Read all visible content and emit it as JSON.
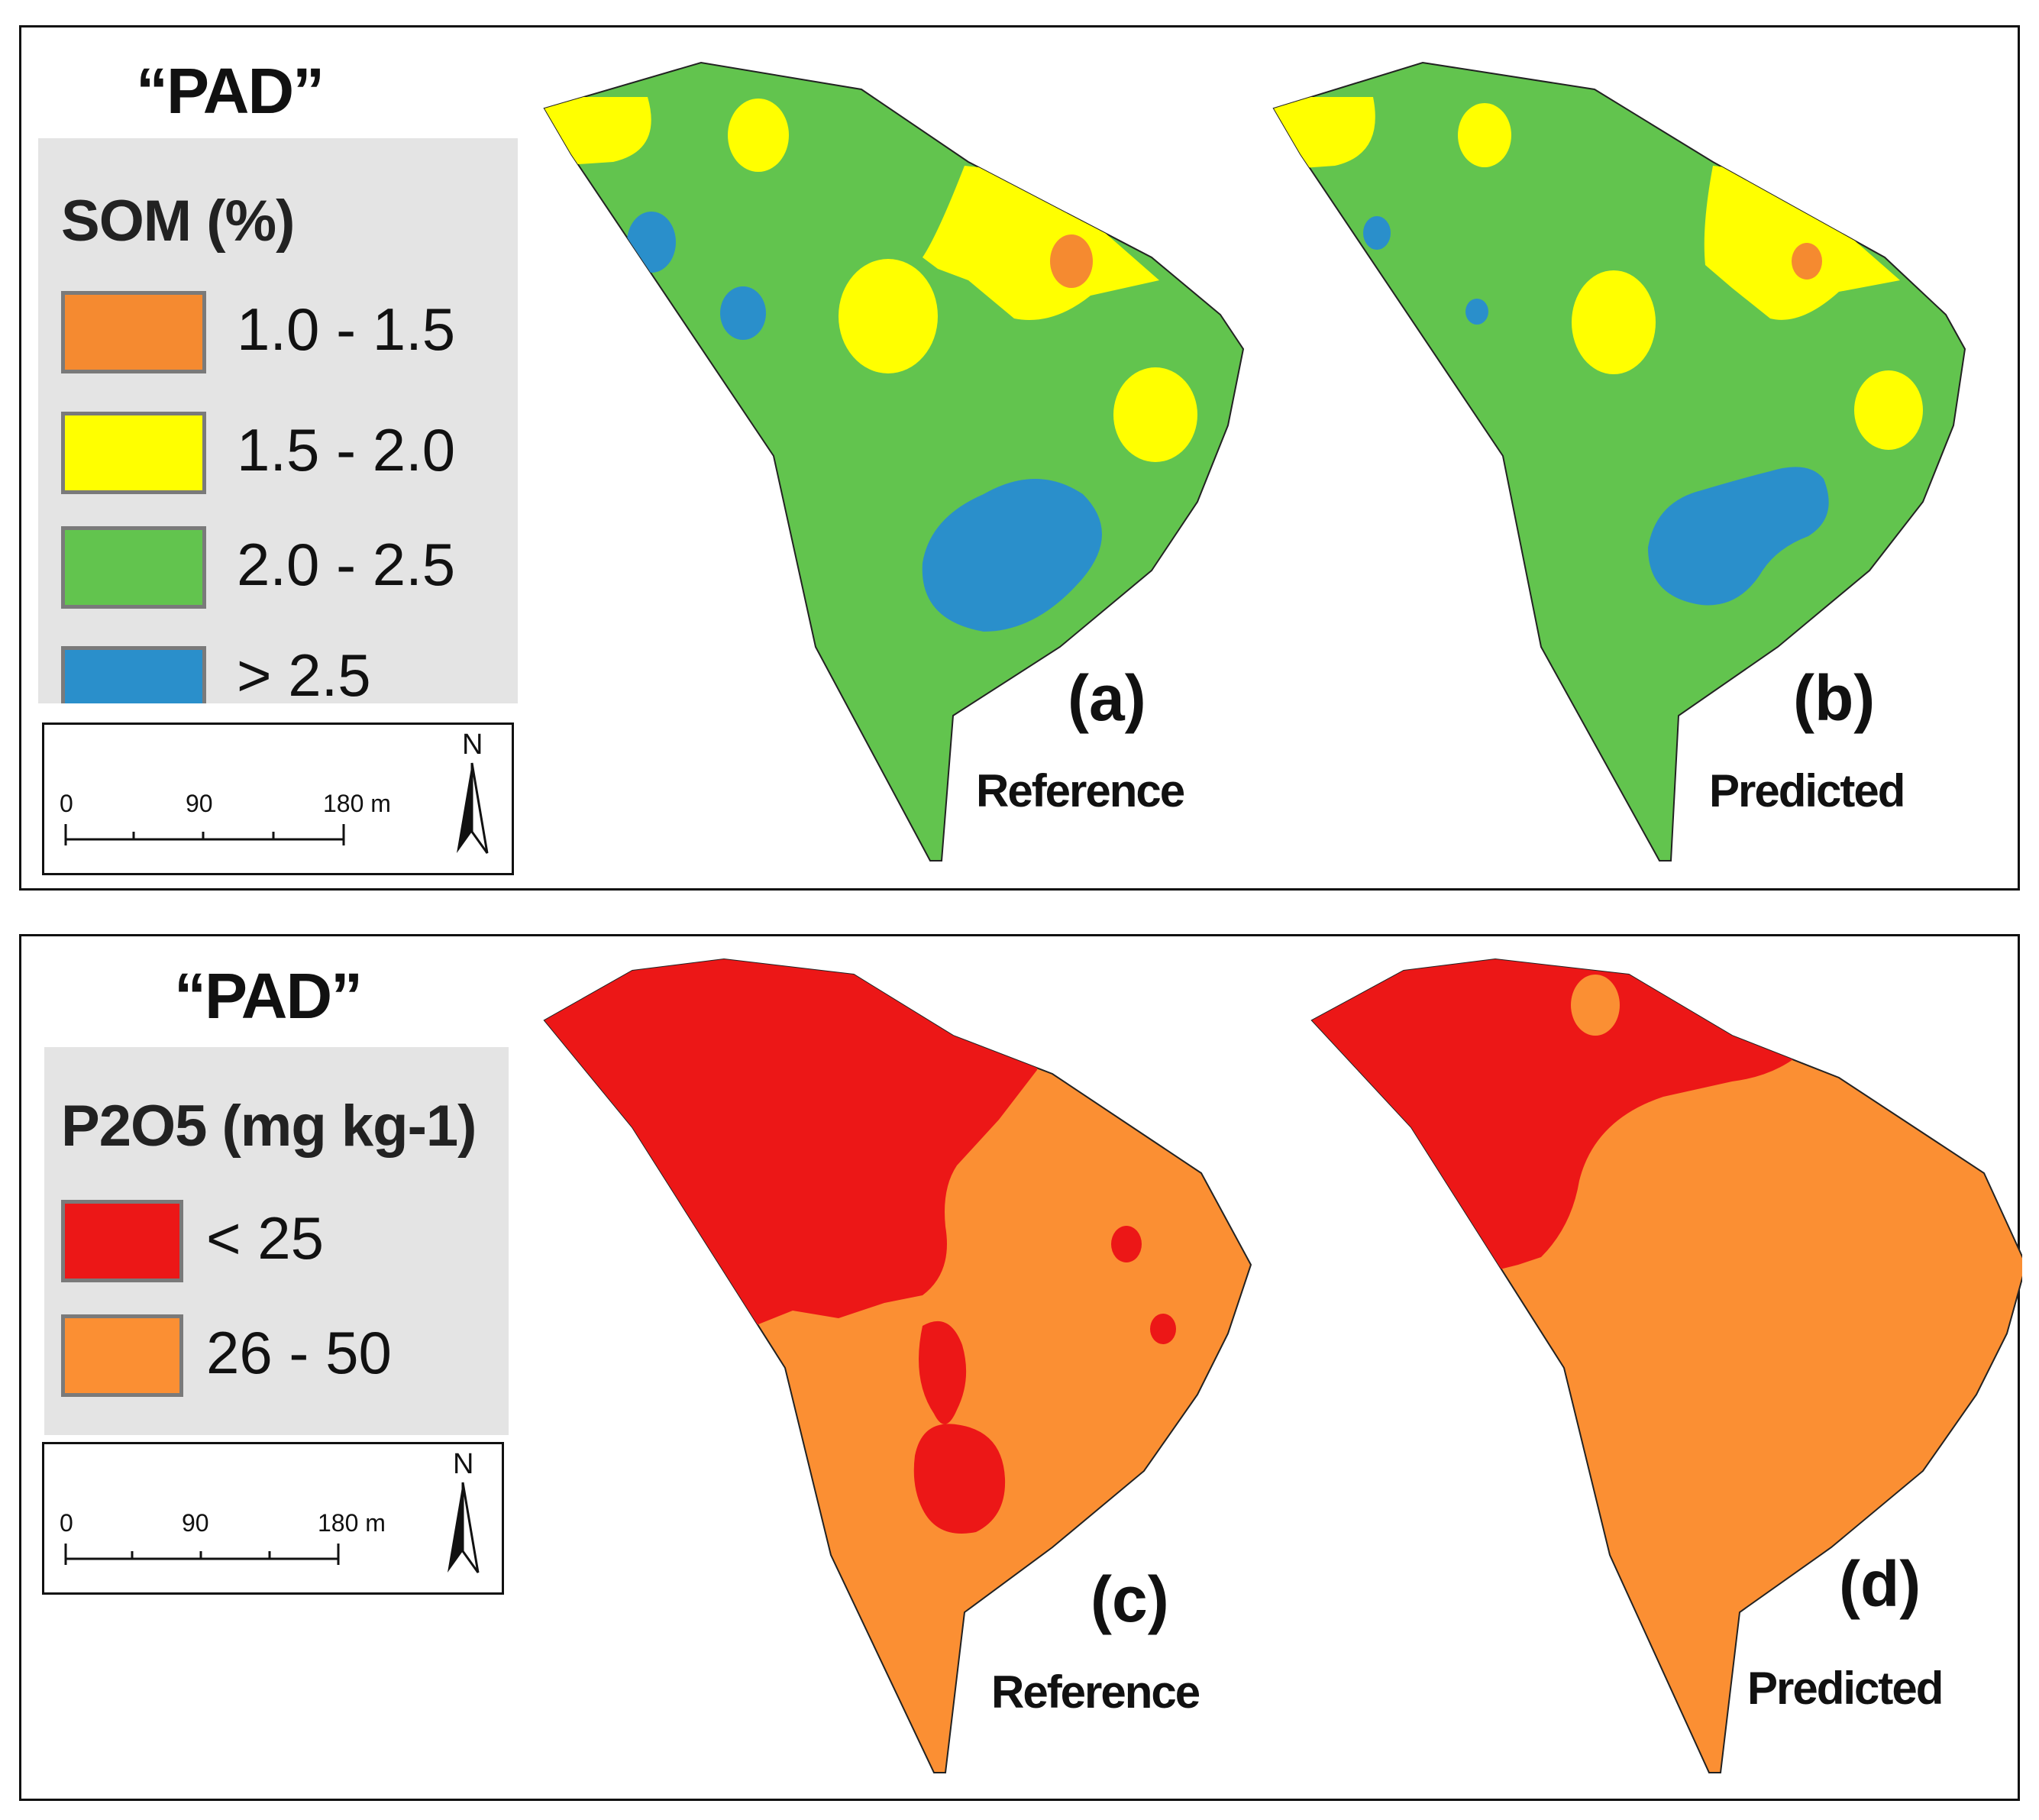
{
  "top_panel": {
    "site_label": "“PAD”",
    "legend": {
      "title": "SOM (%)",
      "classes": [
        {
          "label": "1.0 - 1.5",
          "color": "#f58a30"
        },
        {
          "label": "1.5 - 2.0",
          "color": "#ffff00"
        },
        {
          "label": "2.0 - 2.5",
          "color": "#62c44e"
        },
        {
          "label": "> 2.5",
          "color": "#2a8fcb"
        }
      ]
    },
    "scalebar": {
      "ticks": [
        "0",
        "90",
        "180 m"
      ],
      "north": "N"
    },
    "maps": [
      {
        "letter": "(a)",
        "caption": "Reference"
      },
      {
        "letter": "(b)",
        "caption": "Predicted"
      }
    ]
  },
  "bottom_panel": {
    "site_label": "“PAD”",
    "legend": {
      "title": "P2O5 (mg kg-1)",
      "classes": [
        {
          "label": "< 25",
          "color": "#ec1717"
        },
        {
          "label": "26 - 50",
          "color": "#fb8f33"
        }
      ]
    },
    "scalebar": {
      "ticks": [
        "0",
        "90",
        "180 m"
      ],
      "north": "N"
    },
    "maps": [
      {
        "letter": "(c)",
        "caption": "Reference"
      },
      {
        "letter": "(d)",
        "caption": "Predicted"
      }
    ]
  }
}
